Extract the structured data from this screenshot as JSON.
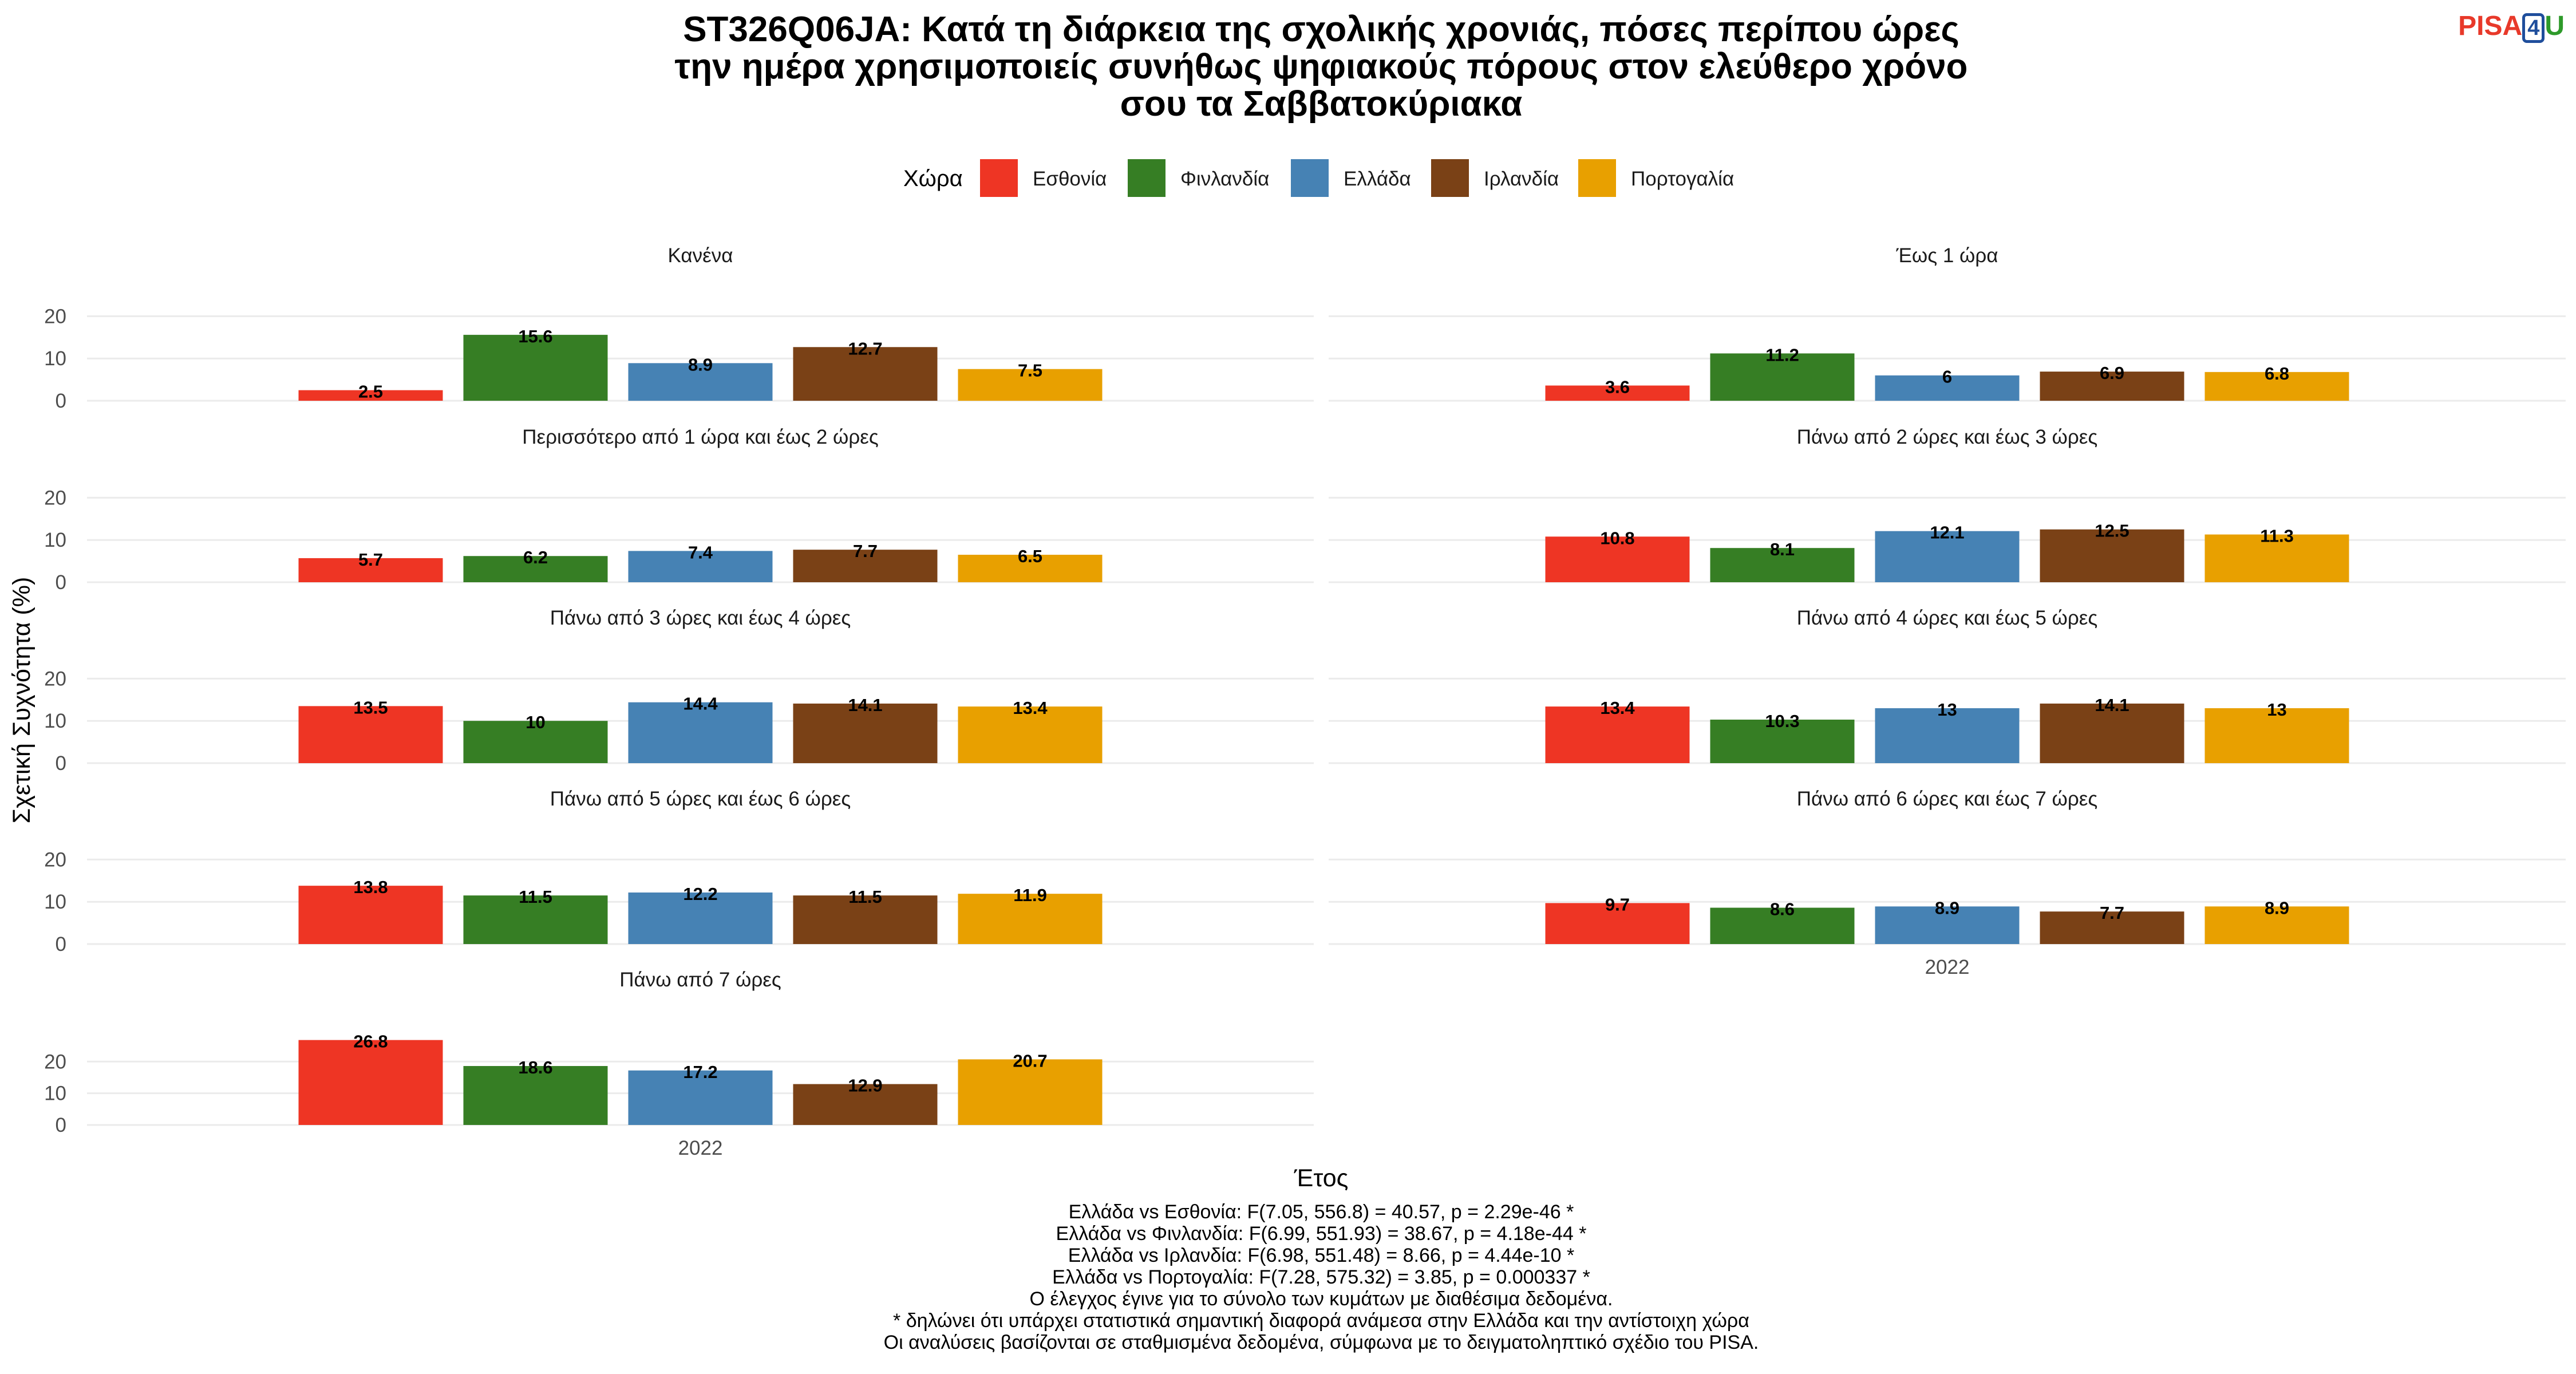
{
  "logo": {
    "part1": "PISA",
    "part2": "4",
    "part3": "U"
  },
  "chart_data": {
    "type": "bar",
    "title": "ST326Q06JA: Κατά τη διάρκεια της σχολικής χρονιάς, πόσες περίπου ώρες την ημέρα χρησιμοποιείς συνήθως ψηφιακούς πόρους στον ελεύθερο χρόνο σου τα Σαββατοκύριακα",
    "title_lines": [
      "ST326Q06JA: Κατά τη διάρκεια της σχολικής χρονιάς, πόσες περίπου ώρες",
      "την ημέρα χρησιμοποιείς συνήθως ψηφιακούς πόρους στον ελεύθερο χρόνο",
      "σου τα Σαββατοκύριακα"
    ],
    "xlabel": "Έτος",
    "ylabel": "Σχετική Συχνότητα (%)",
    "x_category": "2022",
    "legend": {
      "title": "Χώρα",
      "position": "top",
      "entries": [
        {
          "name": "Εσθονία",
          "color": "#ee3524"
        },
        {
          "name": "Φινλανδία",
          "color": "#367e24"
        },
        {
          "name": "Ελλάδα",
          "color": "#4682b4"
        },
        {
          "name": "Ιρλανδία",
          "color": "#7a4116"
        },
        {
          "name": "Πορτογαλία",
          "color": "#e8a000"
        }
      ]
    },
    "grid": true,
    "yticks": [
      0,
      10,
      20
    ],
    "panels": [
      {
        "label": "Κανένα",
        "values": [
          2.5,
          15.6,
          8.9,
          12.7,
          7.5
        ],
        "labels": [
          "2.5",
          "15.6",
          "8.9",
          "12.7",
          "7.5"
        ],
        "ylim": [
          0,
          21
        ]
      },
      {
        "label": "Έως 1 ώρα",
        "values": [
          3.6,
          11.2,
          6,
          6.9,
          6.8
        ],
        "labels": [
          "3.6",
          "11.2",
          "6",
          "6.9",
          "6.8"
        ],
        "ylim": [
          0,
          21
        ]
      },
      {
        "label": "Περισσότερο από 1 ώρα και έως 2 ώρες",
        "values": [
          5.7,
          6.2,
          7.4,
          7.7,
          6.5
        ],
        "labels": [
          "5.7",
          "6.2",
          "7.4",
          "7.7",
          "6.5"
        ],
        "ylim": [
          0,
          21
        ]
      },
      {
        "label": "Πάνω από 2 ώρες και έως 3 ώρες",
        "values": [
          10.8,
          8.1,
          12.1,
          12.5,
          11.3
        ],
        "labels": [
          "10.8",
          "8.1",
          "12.1",
          "12.5",
          "11.3"
        ],
        "ylim": [
          0,
          21
        ]
      },
      {
        "label": "Πάνω από 3 ώρες και έως 4 ώρες",
        "values": [
          13.5,
          10,
          14.4,
          14.1,
          13.4
        ],
        "labels": [
          "13.5",
          "10",
          "14.4",
          "14.1",
          "13.4"
        ],
        "ylim": [
          0,
          21
        ]
      },
      {
        "label": "Πάνω από 4 ώρες και έως 5 ώρες",
        "values": [
          13.4,
          10.3,
          13,
          14.1,
          13
        ],
        "labels": [
          "13.4",
          "10.3",
          "13",
          "14.1",
          "13"
        ],
        "ylim": [
          0,
          21
        ]
      },
      {
        "label": "Πάνω από 5 ώρες και έως 6 ώρες",
        "values": [
          13.8,
          11.5,
          12.2,
          11.5,
          11.9
        ],
        "labels": [
          "13.8",
          "11.5",
          "12.2",
          "11.5",
          "11.9"
        ],
        "ylim": [
          0,
          21
        ]
      },
      {
        "label": "Πάνω από 6 ώρες και έως 7 ώρες",
        "values": [
          9.7,
          8.6,
          8.9,
          7.7,
          8.9
        ],
        "labels": [
          "9.7",
          "8.6",
          "8.9",
          "7.7",
          "8.9"
        ],
        "ylim": [
          0,
          21
        ]
      },
      {
        "label": "Πάνω από 7 ώρες",
        "values": [
          26.8,
          18.6,
          17.2,
          12.9,
          20.7
        ],
        "labels": [
          "26.8",
          "18.6",
          "17.2",
          "12.9",
          "20.7"
        ],
        "ylim": [
          0,
          28
        ]
      }
    ],
    "caption_lines": [
      "Ελλάδα vs Εσθονία: F(7.05, 556.8) = 40.57, p = 2.29e-46 *",
      "Ελλάδα vs Φινλανδία: F(6.99, 551.93) = 38.67, p = 4.18e-44 *",
      "Ελλάδα vs Ιρλανδία: F(6.98, 551.48) = 8.66, p = 4.44e-10 *",
      "Ελλάδα vs Πορτογαλία: F(7.28, 575.32) = 3.85, p = 0.000337 *",
      "Ο έλεγχος έγινε για το σύνολο των κυμάτων με διαθέσιμα δεδομένα.",
      "* δηλώνει ότι υπάρχει στατιστικά σημαντική διαφορά ανάμεσα στην Ελλάδα και την αντίστοιχη χώρα",
      "Οι αναλύσεις βασίζονται σε σταθμισμένα δεδομένα, σύμφωνα με το δειγματοληπτικό σχέδιο του PISA."
    ]
  }
}
